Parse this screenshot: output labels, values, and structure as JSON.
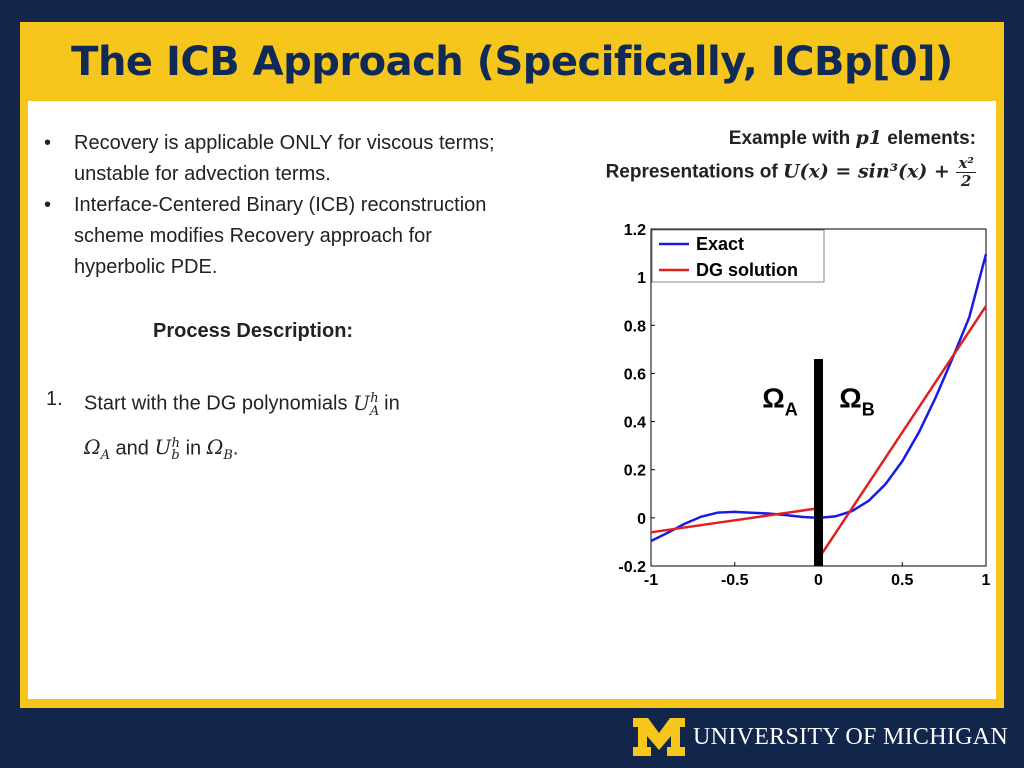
{
  "slide": {
    "title": "The ICB Approach (Specifically, ICBp[0])",
    "bullets": [
      "Recovery is applicable ONLY for viscous terms; unstable for advection terms.",
      "Interface-Centered Binary (ICB) reconstruction scheme modifies Recovery approach for hyperbolic PDE."
    ],
    "process_heading": "Process Description:",
    "step": {
      "number": "1.",
      "prefix": "Start with the DG polynomials ",
      "mid1": " in",
      "mid2": " and ",
      "mid3": " in ",
      "suffix": "."
    },
    "example": {
      "prefix": "Example with ",
      "math": "p1",
      "suffix": " elements:"
    },
    "representation": {
      "prefix": "Representations of ",
      "math": "U(x) = sin³(x) + ",
      "frac_num": "x²",
      "frac_den": "2"
    },
    "footer": {
      "university": "UNIVERSITY OF MICHIGAN",
      "logo_letter": "M"
    },
    "colors": {
      "frame": "#f6c61c",
      "background": "#11264a",
      "title": "#0f2a57",
      "exact": "#1a1ae6",
      "dg": "#e02020"
    }
  },
  "chart_data": {
    "type": "line",
    "title": "",
    "xlabel": "",
    "ylabel": "",
    "xlim": [
      -1,
      1
    ],
    "ylim": [
      -0.2,
      1.2
    ],
    "xticks": [
      -1,
      -0.5,
      0,
      0.5,
      1
    ],
    "xtick_labels": [
      "-1",
      "-0.5",
      "0",
      "0.5",
      "1"
    ],
    "yticks": [
      -0.2,
      0,
      0.2,
      0.4,
      0.6,
      0.8,
      1,
      1.2
    ],
    "ytick_labels": [
      "-0.2",
      "0",
      "0.2",
      "0.4",
      "0.6",
      "0.8",
      "1",
      "1.2"
    ],
    "legend_position": "top-left",
    "series": [
      {
        "name": "Exact",
        "color": "#1a1ae6",
        "x": [
          -1,
          -0.9,
          -0.8,
          -0.7,
          -0.6,
          -0.5,
          -0.4,
          -0.3,
          -0.2,
          -0.1,
          0,
          0.1,
          0.2,
          0.3,
          0.4,
          0.5,
          0.6,
          0.7,
          0.8,
          0.9,
          1
        ],
        "values": [
          -0.096,
          -0.062,
          -0.025,
          0.005,
          0.022,
          0.025,
          0.021,
          0.018,
          0.012,
          0.004,
          0,
          0.006,
          0.028,
          0.071,
          0.14,
          0.235,
          0.356,
          0.501,
          0.663,
          0.833,
          1.096
        ]
      },
      {
        "name": "DG solution",
        "color": "#e02020",
        "segments": [
          {
            "x": [
              -1,
              0
            ],
            "values": [
              -0.06,
              0.04
            ]
          },
          {
            "x": [
              0,
              1
            ],
            "values": [
              -0.17,
              0.88
            ]
          }
        ]
      }
    ],
    "annotations": [
      {
        "text": "Ω",
        "sub": "A",
        "x": -0.23,
        "y": 0.5
      },
      {
        "text": "Ω",
        "sub": "B",
        "x": 0.23,
        "y": 0.5
      }
    ],
    "interface_line": {
      "x": 0,
      "y_range": [
        -0.2,
        0.66
      ]
    }
  }
}
